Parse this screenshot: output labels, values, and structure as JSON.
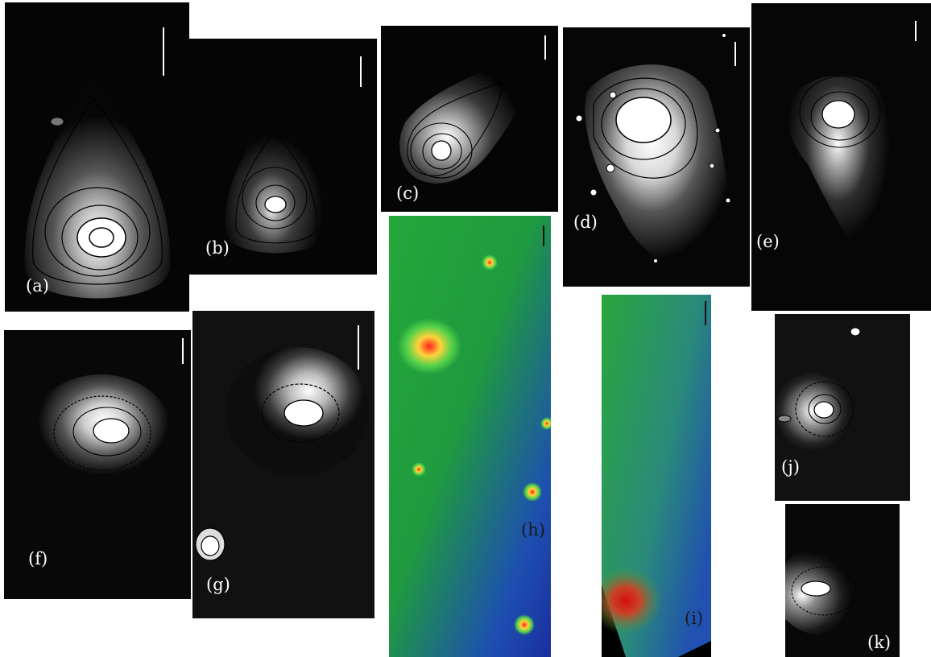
{
  "figure": {
    "panels": [
      {
        "id": "a",
        "label": "(a)",
        "colormap": "grayscale"
      },
      {
        "id": "b",
        "label": "(b)",
        "colormap": "grayscale"
      },
      {
        "id": "c",
        "label": "(c)",
        "colormap": "grayscale"
      },
      {
        "id": "d",
        "label": "(d)",
        "colormap": "grayscale"
      },
      {
        "id": "e",
        "label": "(e)",
        "colormap": "grayscale"
      },
      {
        "id": "f",
        "label": "(f)",
        "colormap": "grayscale"
      },
      {
        "id": "g",
        "label": "(g)",
        "colormap": "grayscale"
      },
      {
        "id": "h",
        "label": "(h)",
        "colormap": "false-color"
      },
      {
        "id": "i",
        "label": "(i)",
        "colormap": "false-color"
      },
      {
        "id": "j",
        "label": "(j)",
        "colormap": "grayscale"
      },
      {
        "id": "k",
        "label": "(k)",
        "colormap": "grayscale"
      }
    ]
  },
  "colors": {
    "background": "#000000",
    "contour": "#000000",
    "label": "#ffffff",
    "false_color_low": "#1d3fae",
    "false_color_mid": "#22a63a",
    "false_color_high": "#e01010"
  }
}
